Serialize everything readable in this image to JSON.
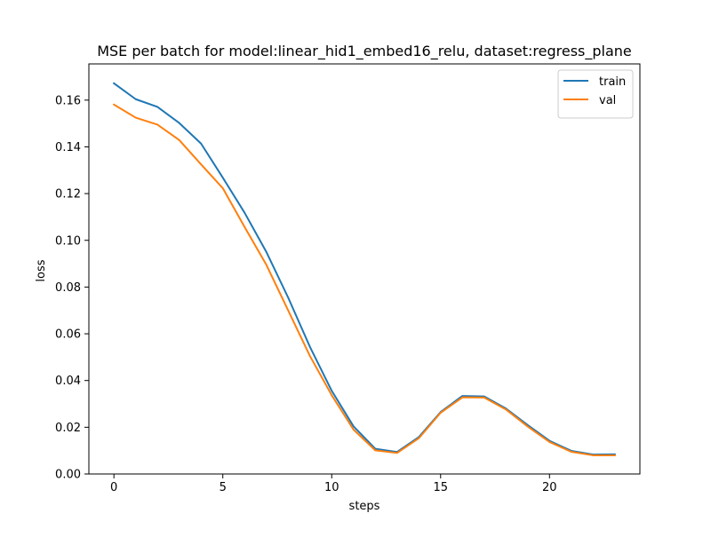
{
  "chart_data": {
    "type": "line",
    "title": "MSE per batch for model:linear_hid1_embed16_relu, dataset:regress_plane",
    "xlabel": "steps",
    "ylabel": "loss",
    "xlim": [
      -1.15,
      24.15
    ],
    "ylim": [
      0,
      0.1755
    ],
    "xticks": [
      0,
      5,
      10,
      15,
      20
    ],
    "xtick_labels": [
      "0",
      "5",
      "10",
      "15",
      "20"
    ],
    "yticks": [
      0,
      0.02,
      0.04,
      0.06,
      0.08,
      0.1,
      0.12,
      0.14,
      0.16
    ],
    "ytick_labels": [
      "0.00",
      "0.02",
      "0.04",
      "0.06",
      "0.08",
      "0.10",
      "0.12",
      "0.14",
      "0.16"
    ],
    "grid": false,
    "legend_position": "top-right",
    "x": [
      0,
      1,
      2,
      3,
      4,
      5,
      6,
      7,
      8,
      9,
      10,
      11,
      12,
      13,
      14,
      15,
      16,
      17,
      18,
      19,
      20,
      21,
      22,
      23
    ],
    "series": [
      {
        "name": "train",
        "color": "#1f77b4",
        "values": [
          0.1672,
          0.1604,
          0.1571,
          0.1502,
          0.1414,
          0.1268,
          0.1118,
          0.095,
          0.0755,
          0.0544,
          0.0356,
          0.0204,
          0.0108,
          0.0094,
          0.0158,
          0.0265,
          0.0334,
          0.0332,
          0.028,
          0.0209,
          0.0142,
          0.0099,
          0.0083,
          0.0084
        ]
      },
      {
        "name": "val",
        "color": "#ff7f0e",
        "values": [
          0.1581,
          0.1525,
          0.1495,
          0.1429,
          0.1325,
          0.1223,
          0.1057,
          0.0895,
          0.07,
          0.0505,
          0.0337,
          0.019,
          0.0101,
          0.009,
          0.0153,
          0.0262,
          0.0328,
          0.0327,
          0.0276,
          0.0203,
          0.0137,
          0.0095,
          0.008,
          0.008
        ]
      }
    ]
  }
}
